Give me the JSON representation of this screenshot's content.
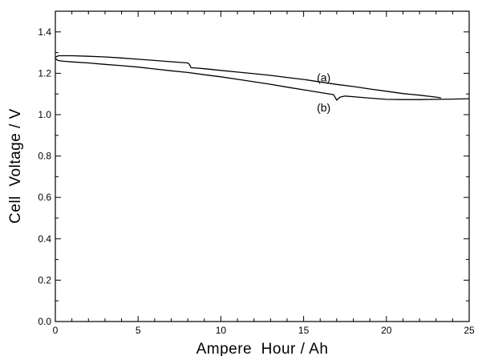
{
  "chart_data": {
    "type": "line",
    "xlabel": "Ampere  Hour / Ah",
    "ylabel": "Cell  Voltage / V",
    "xlim": [
      0,
      25
    ],
    "ylim": [
      0,
      1.5
    ],
    "x_ticks": [
      0,
      5,
      10,
      15,
      20,
      25
    ],
    "x_tick_labels": [
      "0",
      "5",
      "10",
      "15",
      "20",
      "25"
    ],
    "y_ticks": [
      0.0,
      0.2,
      0.4,
      0.6,
      0.8,
      1.0,
      1.2,
      1.4
    ],
    "y_tick_labels": [
      "0.0",
      "0.2",
      "0.4",
      "0.6",
      "0.8",
      "1.0",
      "1.2",
      "1.4"
    ],
    "grid": false,
    "line_color": "#000000",
    "series": [
      {
        "name": "(a)",
        "x": [
          0,
          0.2,
          1,
          2,
          3,
          4,
          5,
          6,
          7,
          8,
          8.1,
          8.2,
          9,
          10,
          11,
          12,
          13,
          14,
          15,
          16,
          17,
          18,
          19,
          20,
          21,
          22,
          23,
          23.3
        ],
        "y": [
          1.278,
          1.285,
          1.285,
          1.282,
          1.279,
          1.274,
          1.268,
          1.262,
          1.256,
          1.25,
          1.243,
          1.227,
          1.222,
          1.214,
          1.206,
          1.198,
          1.19,
          1.18,
          1.17,
          1.158,
          1.146,
          1.136,
          1.124,
          1.113,
          1.102,
          1.094,
          1.085,
          1.081
        ],
        "label_at": [
          15.8,
          1.16
        ]
      },
      {
        "name": "(b)",
        "x": [
          0,
          0.15,
          0.5,
          1,
          2,
          3,
          4,
          5,
          6,
          7,
          8,
          9,
          10,
          11,
          12,
          13,
          14,
          15,
          16,
          16.8,
          17.0,
          17.2,
          17.5,
          18,
          19,
          20,
          21,
          22,
          23,
          24,
          25
        ],
        "y": [
          1.272,
          1.262,
          1.258,
          1.255,
          1.25,
          1.243,
          1.237,
          1.23,
          1.221,
          1.212,
          1.204,
          1.193,
          1.183,
          1.171,
          1.159,
          1.147,
          1.133,
          1.12,
          1.107,
          1.097,
          1.07,
          1.085,
          1.09,
          1.087,
          1.08,
          1.074,
          1.073,
          1.073,
          1.074,
          1.075,
          1.077
        ],
        "label_at": [
          15.8,
          1.015
        ]
      }
    ]
  }
}
